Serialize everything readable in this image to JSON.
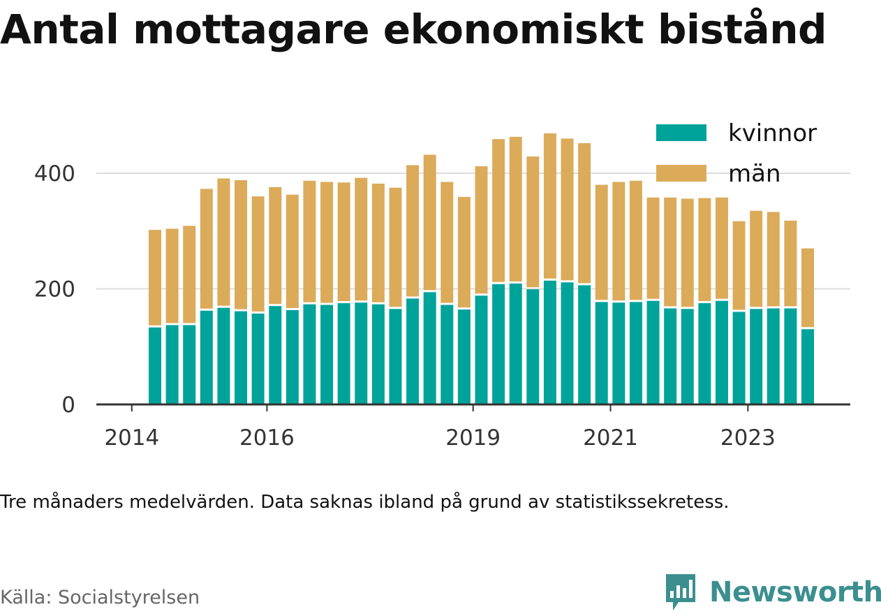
{
  "title": "Antal mottagare ekonomiskt bistånd",
  "note": "Tre månaders medelvärden. Data saknas ibland på grund av statistikssekretess.",
  "source": "Källa: Socialstyrelsen",
  "brand": "Newsworthy",
  "chart_data": {
    "type": "bar",
    "stacked": true,
    "title": "Antal mottagare ekonomiskt bistånd",
    "xlabel": "",
    "ylabel": "",
    "ylim": [
      0,
      470
    ],
    "yticks": [
      0,
      200,
      400
    ],
    "grid": true,
    "legend_position": "top-right",
    "x_tick_labels": [
      "2014",
      "2016",
      "2019",
      "2021",
      "2023"
    ],
    "categories": [
      "2014 Q2",
      "2014 Q3",
      "2014 Q4",
      "2015 Q1",
      "2015 Q2",
      "2015 Q3",
      "2015 Q4",
      "2016 Q1",
      "2016 Q2",
      "2016 Q3",
      "2016 Q4",
      "2017 Q1",
      "2017 Q2",
      "2017 Q3",
      "2017 Q4",
      "2018 Q1",
      "2018 Q2",
      "2018 Q3",
      "2018 Q4",
      "2019 Q1",
      "2019 Q2",
      "2019 Q3",
      "2019 Q4",
      "2020 Q1",
      "2020 Q2",
      "2020 Q3",
      "2020 Q4",
      "2021 Q1",
      "2021 Q2",
      "2021 Q3",
      "2021 Q4",
      "2022 Q1",
      "2022 Q2",
      "2022 Q3",
      "2022 Q4",
      "2023 Q1",
      "2023 Q2",
      "2023 Q3",
      "2023 Q4"
    ],
    "series": [
      {
        "name": "kvinnor",
        "color": "#00a39a",
        "values": [
          135,
          139,
          139,
          164,
          169,
          163,
          159,
          172,
          165,
          175,
          174,
          177,
          178,
          175,
          167,
          185,
          196,
          174,
          166,
          190,
          210,
          211,
          201,
          216,
          213,
          208,
          179,
          178,
          179,
          181,
          168,
          167,
          177,
          181,
          162,
          167,
          168,
          168,
          132
        ]
      },
      {
        "name": "män",
        "color": "#dbab5a",
        "values": [
          167,
          165,
          170,
          209,
          222,
          225,
          201,
          204,
          198,
          212,
          211,
          207,
          214,
          207,
          208,
          229,
          236,
          211,
          193,
          222,
          249,
          252,
          228,
          253,
          247,
          244,
          201,
          207,
          208,
          177,
          190,
          189,
          180,
          177,
          155,
          168,
          165,
          150,
          138
        ]
      }
    ]
  }
}
